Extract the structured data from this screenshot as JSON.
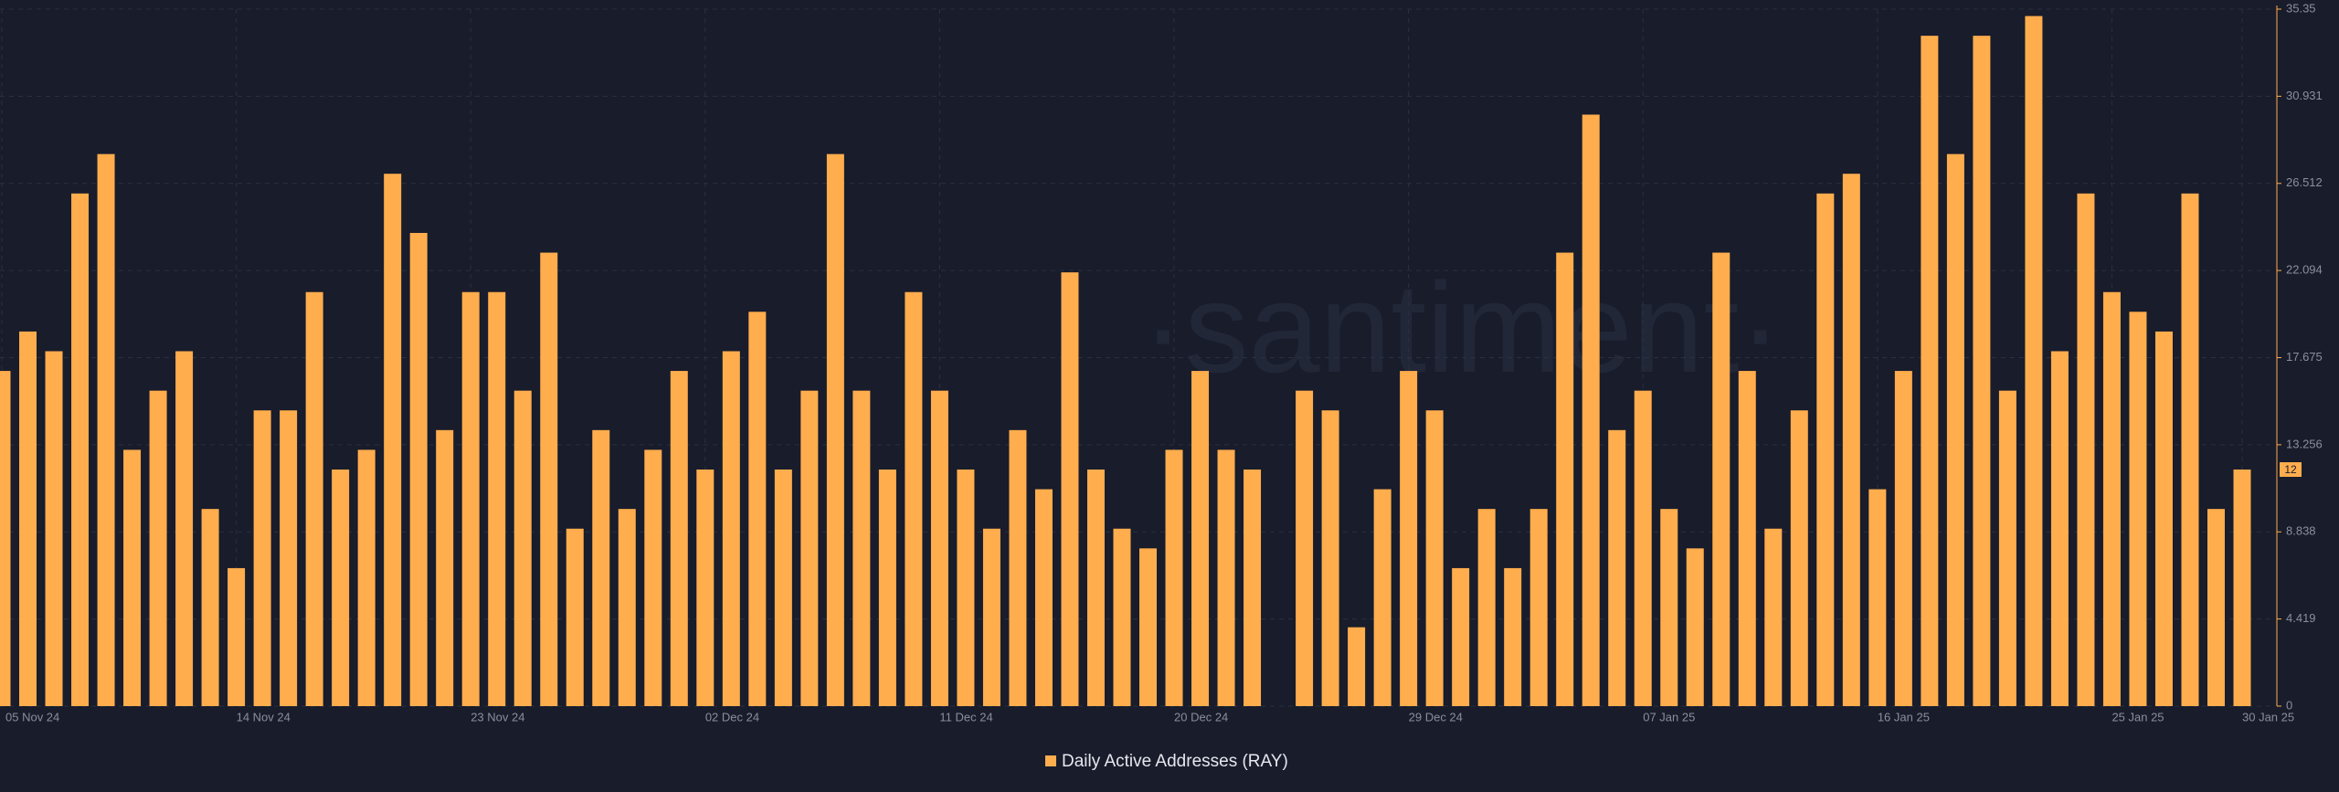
{
  "chart_data": {
    "type": "bar",
    "watermark": "·santiment·",
    "categories": [
      "05 Nov 24",
      null,
      null,
      null,
      null,
      null,
      null,
      null,
      null,
      "14 Nov 24",
      null,
      null,
      null,
      null,
      null,
      null,
      null,
      null,
      "23 Nov 24",
      null,
      null,
      null,
      null,
      null,
      null,
      null,
      null,
      "02 Dec 24",
      null,
      null,
      null,
      null,
      null,
      null,
      null,
      null,
      "11 Dec 24",
      null,
      null,
      null,
      null,
      null,
      null,
      null,
      null,
      "20 Dec 24",
      null,
      null,
      null,
      null,
      null,
      null,
      null,
      null,
      "29 Dec 24",
      null,
      null,
      null,
      null,
      null,
      null,
      null,
      null,
      "07 Jan 25",
      null,
      null,
      null,
      null,
      null,
      null,
      null,
      null,
      "16 Jan 25",
      null,
      null,
      null,
      null,
      null,
      null,
      null,
      null,
      "25 Jan 25",
      null,
      null,
      null,
      null,
      "30 Jan 25"
    ],
    "series": [
      {
        "name": "Daily Active Addresses (RAY)",
        "color": "#ffad4d",
        "values": [
          17,
          19,
          18,
          26,
          28,
          13,
          16,
          18,
          10,
          7,
          15,
          15,
          21,
          12,
          13,
          27,
          24,
          14,
          21,
          21,
          16,
          23,
          9,
          14,
          10,
          13,
          17,
          12,
          18,
          20,
          12,
          16,
          28,
          16,
          12,
          21,
          16,
          12,
          9,
          14,
          11,
          22,
          12,
          9,
          8,
          13,
          17,
          13,
          12,
          null,
          16,
          15,
          4,
          11,
          17,
          15,
          7,
          10,
          7,
          10,
          23,
          30,
          14,
          16,
          10,
          8,
          23,
          17,
          9,
          15,
          26,
          27,
          11,
          17,
          34,
          28,
          34,
          16,
          35,
          18,
          26,
          21,
          20,
          19,
          26,
          10,
          12
        ]
      }
    ],
    "ylim": [
      0,
      35.35
    ],
    "yticks": [
      0,
      4.419,
      8.838,
      13.256,
      17.675,
      22.094,
      26.512,
      30.931,
      35.35
    ],
    "grid": true
  }
}
